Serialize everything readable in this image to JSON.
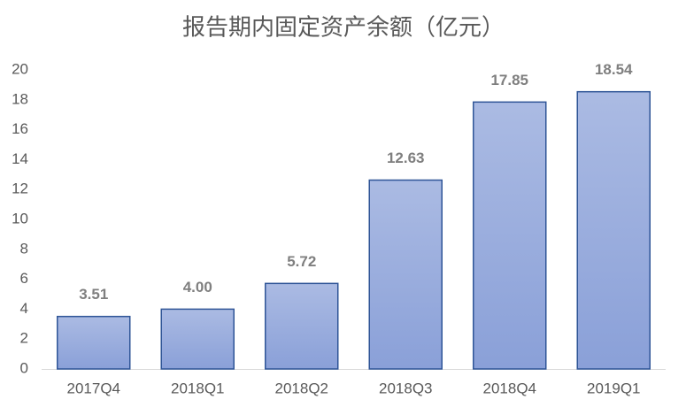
{
  "chart_data": {
    "type": "bar",
    "title": "报告期内固定资产余额（亿元）",
    "categories": [
      "2017Q4",
      "2018Q1",
      "2018Q2",
      "2018Q3",
      "2018Q4",
      "2019Q1"
    ],
    "values": [
      3.51,
      4.0,
      5.72,
      12.63,
      17.85,
      18.54
    ],
    "value_labels": [
      "3.51",
      "4.00",
      "5.72",
      "12.63",
      "17.85",
      "18.54"
    ],
    "color": "#8aa0d8",
    "ylim": [
      0,
      20
    ],
    "yticks": [
      0,
      2,
      4,
      6,
      8,
      10,
      12,
      14,
      16,
      18,
      20
    ],
    "grid": false
  }
}
